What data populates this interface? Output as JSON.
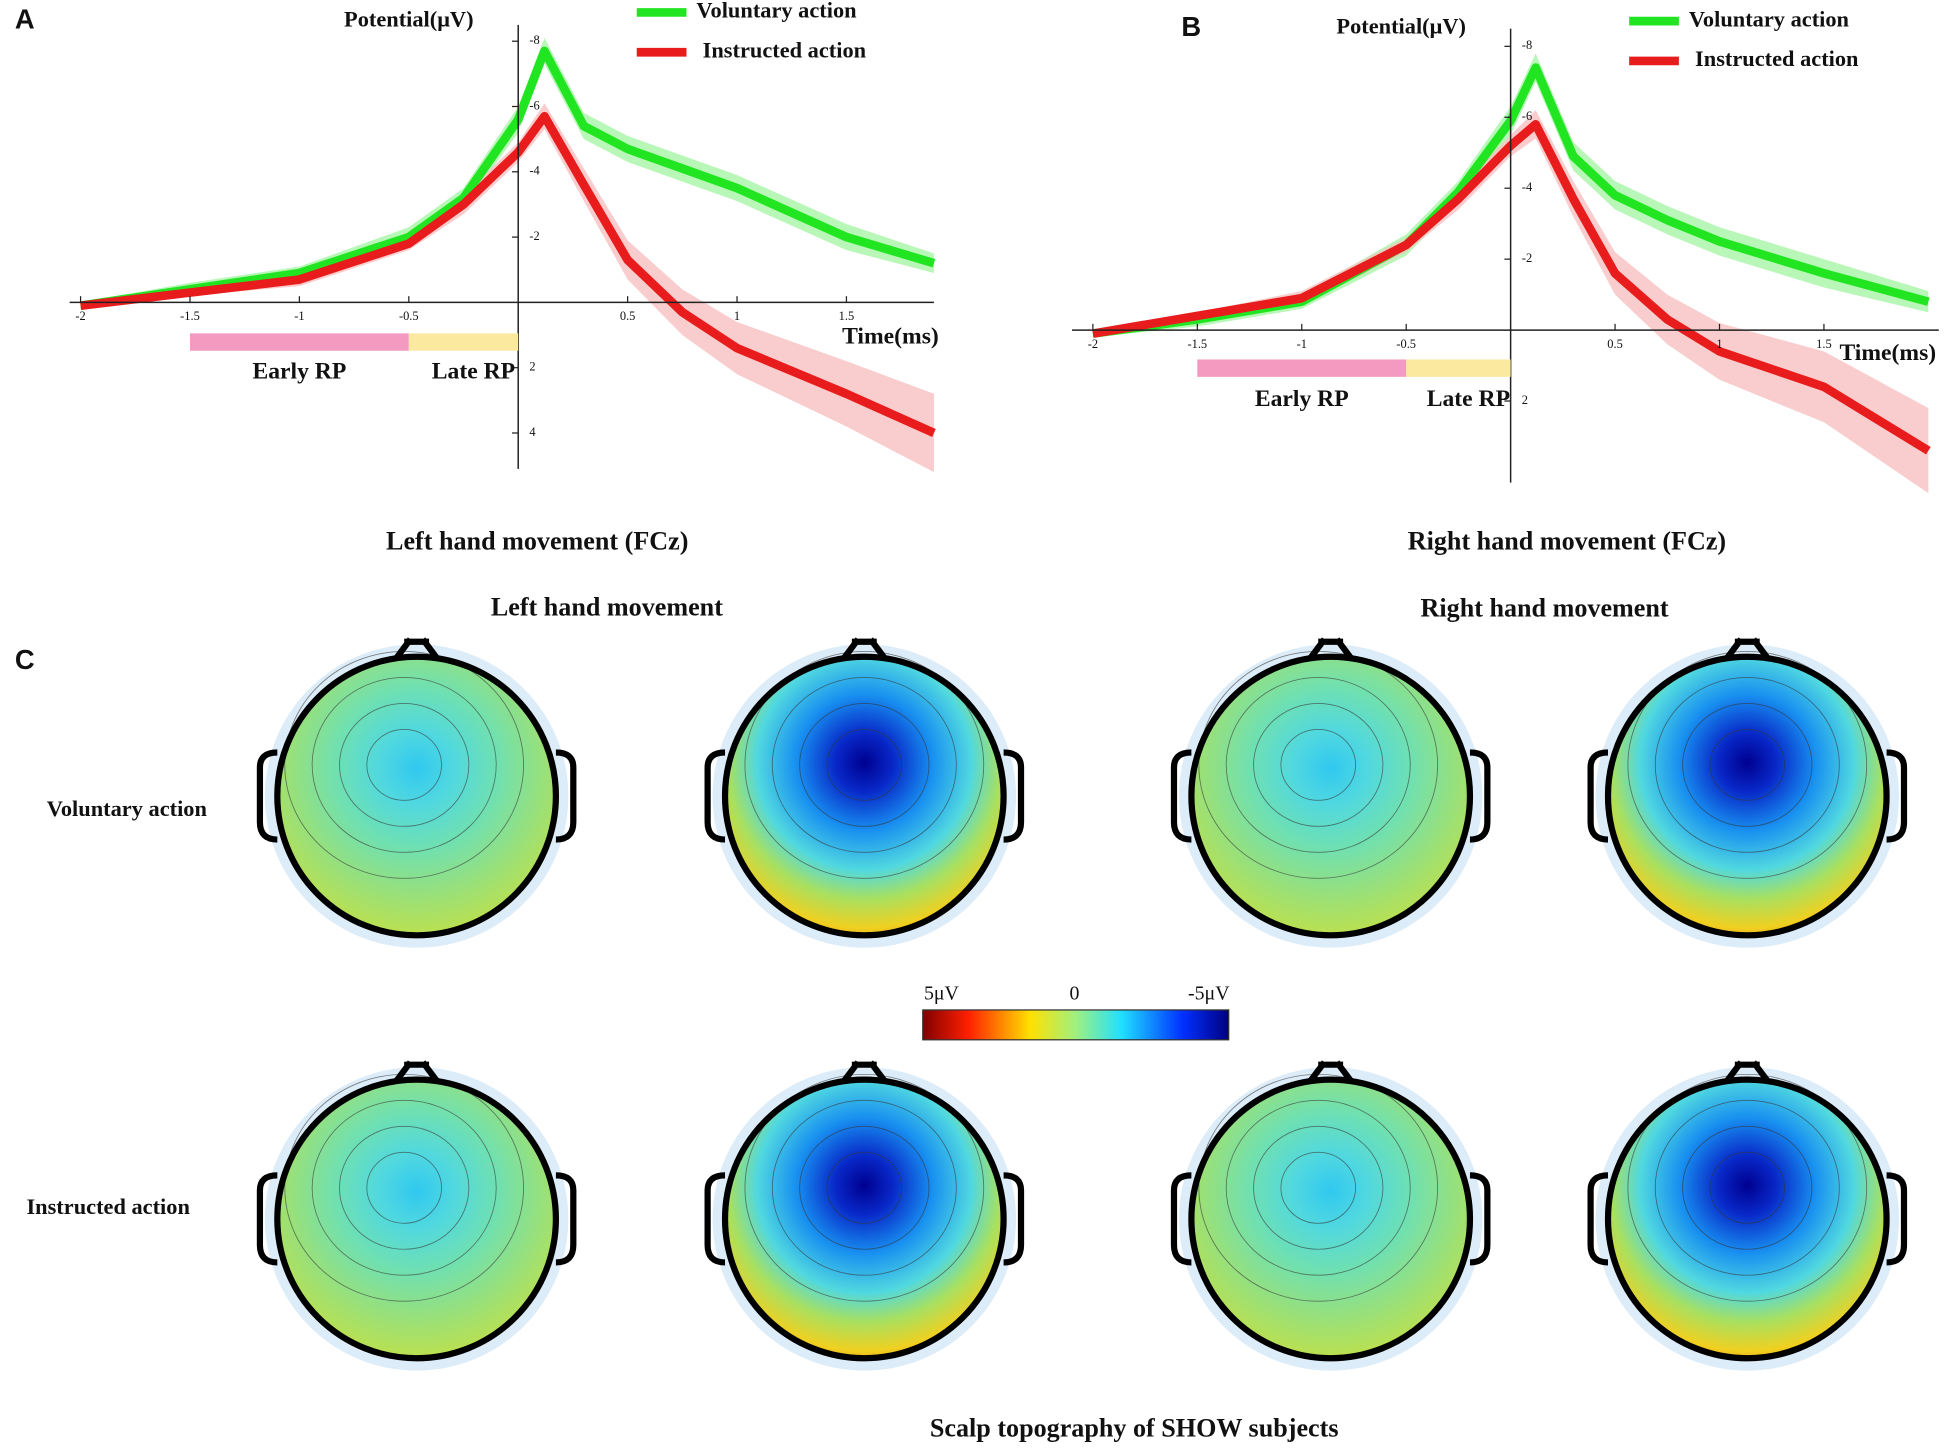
{
  "chart_data": [
    {
      "type": "line",
      "panel": "A",
      "ylabel": "Potential(μV)",
      "xlabel": "Time(ms)",
      "caption": "Left hand movement (FCz)",
      "x": [
        -2,
        -1.5,
        -1,
        -0.5,
        -0.25,
        0,
        0.12,
        0.3,
        0.5,
        0.75,
        1,
        1.5,
        1.9
      ],
      "xlim": [
        -2.05,
        1.9
      ],
      "xticks": [
        -2,
        -1.5,
        -1,
        -0.5,
        0.5,
        1,
        1.5
      ],
      "ylim": [
        -8.5,
        5.1
      ],
      "yticks": [
        -8,
        -6,
        -4,
        -2,
        2,
        4
      ],
      "y_inverted": true,
      "series": [
        {
          "name": "Voluntary action",
          "color": "#22e522",
          "band_color": "#a8f5a8",
          "values": [
            0.1,
            -0.4,
            -0.9,
            -2.0,
            -3.2,
            -5.6,
            -7.7,
            -5.4,
            -4.7,
            -4.1,
            -3.5,
            -2.0,
            -1.2
          ],
          "error": [
            0.1,
            0.2,
            0.2,
            0.3,
            0.3,
            0.4,
            0.4,
            0.4,
            0.4,
            0.4,
            0.4,
            0.4,
            0.3
          ]
        },
        {
          "name": "Instructed action",
          "color": "#e81c1c",
          "band_color": "#f8c0c0",
          "values": [
            0.1,
            -0.3,
            -0.7,
            -1.8,
            -3.0,
            -4.6,
            -5.7,
            -3.6,
            -1.3,
            0.3,
            1.4,
            2.8,
            4.0
          ],
          "error": [
            0.1,
            0.1,
            0.2,
            0.2,
            0.3,
            0.3,
            0.4,
            0.5,
            0.6,
            0.7,
            0.8,
            1.0,
            1.2
          ]
        }
      ],
      "annotations": [
        {
          "label": "Early RP",
          "range": [
            -1.5,
            -0.5
          ],
          "color": "#f49ac1"
        },
        {
          "label": "Late RP",
          "range": [
            -0.5,
            0
          ],
          "color": "#fbe9a0"
        }
      ]
    },
    {
      "type": "line",
      "panel": "B",
      "ylabel": "Potential(μV)",
      "xlabel": "Time(ms)",
      "caption": "Right hand movement (FCz)",
      "x": [
        -2,
        -1.5,
        -1,
        -0.5,
        -0.25,
        0,
        0.12,
        0.3,
        0.5,
        0.75,
        1,
        1.5,
        2
      ],
      "xlim": [
        -2.1,
        2.05
      ],
      "xticks": [
        -2,
        -1.5,
        -1,
        -0.5,
        0.5,
        1,
        1.5
      ],
      "ylim": [
        -8.5,
        4.3
      ],
      "yticks": [
        -8,
        -6,
        -4,
        -2,
        2
      ],
      "y_inverted": true,
      "series": [
        {
          "name": "Voluntary action",
          "color": "#22e522",
          "band_color": "#a8f5a8",
          "values": [
            0.1,
            -0.3,
            -0.8,
            -2.4,
            -3.9,
            -5.9,
            -7.4,
            -4.9,
            -3.8,
            -3.1,
            -2.5,
            -1.6,
            -0.8
          ],
          "error": [
            0.1,
            0.2,
            0.2,
            0.3,
            0.3,
            0.4,
            0.4,
            0.4,
            0.4,
            0.4,
            0.4,
            0.4,
            0.3
          ]
        },
        {
          "name": "Instructed action",
          "color": "#e81c1c",
          "band_color": "#f8c0c0",
          "values": [
            0.1,
            -0.4,
            -0.9,
            -2.4,
            -3.7,
            -5.2,
            -5.8,
            -3.7,
            -1.6,
            -0.3,
            0.6,
            1.6,
            3.4
          ],
          "error": [
            0.1,
            0.1,
            0.2,
            0.2,
            0.3,
            0.3,
            0.4,
            0.5,
            0.6,
            0.7,
            0.8,
            1.0,
            1.2
          ]
        }
      ],
      "annotations": [
        {
          "label": "Early RP",
          "range": [
            -1.5,
            -0.5
          ],
          "color": "#f49ac1"
        },
        {
          "label": "Late RP",
          "range": [
            -0.5,
            0
          ],
          "color": "#fbe9a0"
        }
      ]
    }
  ],
  "topography": {
    "panel": "C",
    "title": "Scalp topography of SHOW subjects",
    "columns": [
      "Left hand movement",
      "Right hand movement"
    ],
    "rows": [
      "Voluntary action",
      "Instructed action"
    ],
    "colorbar": [
      "5μV",
      "0",
      "-5μV"
    ]
  }
}
